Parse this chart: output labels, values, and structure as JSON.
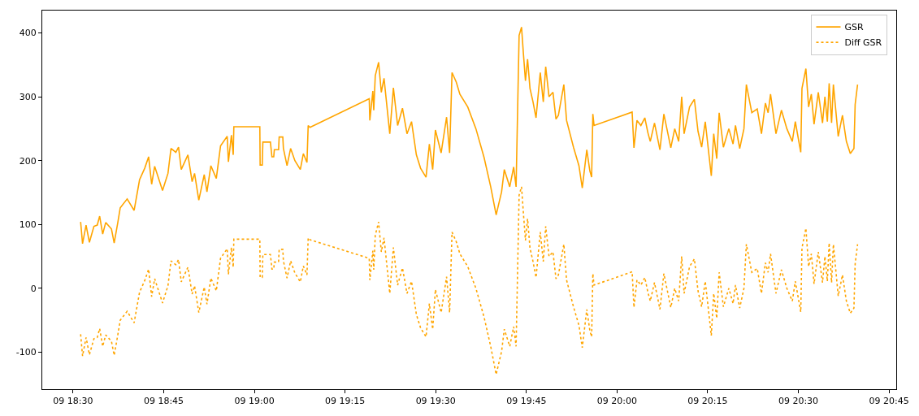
{
  "chart_data": {
    "type": "line",
    "x": [
      "2000-01-09T18:31:15",
      "2000-01-09T18:31:34",
      "2000-01-09T18:32:09",
      "2000-01-09T18:32:42",
      "2000-01-09T18:33:27",
      "2000-01-09T18:34:00",
      "2000-01-09T18:34:24",
      "2000-01-09T18:34:54",
      "2000-01-09T18:35:24",
      "2000-01-09T18:36:21",
      "2000-01-09T18:36:48",
      "2000-01-09T18:37:24",
      "2000-01-09T18:37:48",
      "2000-01-09T18:38:57",
      "2000-01-09T18:40:06",
      "2000-01-09T18:41:00",
      "2000-01-09T18:41:51",
      "2000-01-09T18:42:30",
      "2000-01-09T18:43:00",
      "2000-01-09T18:43:30",
      "2000-01-09T18:44:48",
      "2000-01-09T18:45:42",
      "2000-01-09T18:46:12",
      "2000-01-09T18:47:00",
      "2000-01-09T18:47:27",
      "2000-01-09T18:47:54",
      "2000-01-09T18:49:00",
      "2000-01-09T18:49:42",
      "2000-01-09T18:50:06",
      "2000-01-09T18:50:48",
      "2000-01-09T18:51:42",
      "2000-01-09T18:52:09",
      "2000-01-09T18:52:48",
      "2000-01-09T18:53:42",
      "2000-01-09T18:54:24",
      "2000-01-09T18:55:30",
      "2000-01-09T18:55:42",
      "2000-01-09T18:56:12",
      "2000-01-09T18:56:30",
      "2000-01-09T18:56:36",
      "2000-01-09T19:00:54",
      "2000-01-09T19:00:57",
      "2000-01-09T19:01:18",
      "2000-01-09T19:01:24",
      "2000-01-09T19:02:39",
      "2000-01-09T19:02:54",
      "2000-01-09T19:03:12",
      "2000-01-09T19:03:18",
      "2000-01-09T19:04:00",
      "2000-01-09T19:04:06",
      "2000-01-09T19:04:42",
      "2000-01-09T19:04:48",
      "2000-01-09T19:05:24",
      "2000-01-09T19:06:00",
      "2000-01-09T19:06:42",
      "2000-01-09T19:07:36",
      "2000-01-09T19:08:06",
      "2000-01-09T19:08:42",
      "2000-01-09T19:08:54",
      "2000-01-09T19:09:12",
      "2000-01-09T19:19:00",
      "2000-01-09T19:19:06",
      "2000-01-09T19:19:36",
      "2000-01-09T19:19:45",
      "2000-01-09T19:20:00",
      "2000-01-09T19:20:33",
      "2000-01-09T19:21:00",
      "2000-01-09T19:21:27",
      "2000-01-09T19:22:24",
      "2000-01-09T19:23:00",
      "2000-01-09T19:23:42",
      "2000-01-09T19:24:30",
      "2000-01-09T19:25:15",
      "2000-01-09T19:26:00",
      "2000-01-09T19:26:48",
      "2000-01-09T19:27:30",
      "2000-01-09T19:28:24",
      "2000-01-09T19:28:57",
      "2000-01-09T19:29:30",
      "2000-01-09T19:29:57",
      "2000-01-09T19:30:54",
      "2000-01-09T19:31:48",
      "2000-01-09T19:32:18",
      "2000-01-09T19:32:42",
      "2000-01-09T19:33:24",
      "2000-01-09T19:34:00",
      "2000-01-09T19:35:18",
      "2000-01-09T19:36:39",
      "2000-01-09T19:38:00",
      "2000-01-09T19:39:06",
      "2000-01-09T19:40:00",
      "2000-01-09T19:40:54",
      "2000-01-09T19:41:21",
      "2000-01-09T19:42:15",
      "2000-01-09T19:42:54",
      "2000-01-09T19:43:18",
      "2000-01-09T19:43:36",
      "2000-01-09T19:43:48",
      "2000-01-09T19:44:12",
      "2000-01-09T19:44:30",
      "2000-01-09T19:44:51",
      "2000-01-09T19:45:12",
      "2000-01-09T19:45:36",
      "2000-01-09T19:46:06",
      "2000-01-09T19:46:36",
      "2000-01-09T19:47:18",
      "2000-01-09T19:47:48",
      "2000-01-09T19:48:12",
      "2000-01-09T19:48:45",
      "2000-01-09T19:49:24",
      "2000-01-09T19:49:54",
      "2000-01-09T19:50:18",
      "2000-01-09T19:51:12",
      "2000-01-09T19:51:39",
      "2000-01-09T19:52:48",
      "2000-01-09T19:53:42",
      "2000-01-09T19:54:15",
      "2000-01-09T19:55:00",
      "2000-01-09T19:55:30",
      "2000-01-09T19:55:48",
      "2000-01-09T19:56:00",
      "2000-01-09T19:56:12",
      "2000-01-09T20:02:30",
      "2000-01-09T20:02:48",
      "2000-01-09T20:03:18",
      "2000-01-09T20:03:57",
      "2000-01-09T20:04:36",
      "2000-01-09T20:05:06",
      "2000-01-09T20:05:30",
      "2000-01-09T20:06:12",
      "2000-01-09T20:07:06",
      "2000-01-09T20:07:45",
      "2000-01-09T20:08:54",
      "2000-01-09T20:09:33",
      "2000-01-09T20:10:12",
      "2000-01-09T20:10:42",
      "2000-01-09T20:11:06",
      "2000-01-09T20:12:00",
      "2000-01-09T20:12:48",
      "2000-01-09T20:13:24",
      "2000-01-09T20:14:00",
      "2000-01-09T20:14:36",
      "2000-01-09T20:15:36",
      "2000-01-09T20:16:00",
      "2000-01-09T20:16:30",
      "2000-01-09T20:16:54",
      "2000-01-09T20:17:36",
      "2000-01-09T20:18:30",
      "2000-01-09T20:19:12",
      "2000-01-09T20:19:36",
      "2000-01-09T20:20:18",
      "2000-01-09T20:21:00",
      "2000-01-09T20:21:24",
      "2000-01-09T20:22:18",
      "2000-01-09T20:23:12",
      "2000-01-09T20:23:54",
      "2000-01-09T20:24:33",
      "2000-01-09T20:25:00",
      "2000-01-09T20:25:24",
      "2000-01-09T20:26:18",
      "2000-01-09T20:27:12",
      "2000-01-09T20:28:06",
      "2000-01-09T20:29:00",
      "2000-01-09T20:29:30",
      "2000-01-09T20:30:24",
      "2000-01-09T20:30:36",
      "2000-01-09T20:31:15",
      "2000-01-09T20:31:42",
      "2000-01-09T20:32:09",
      "2000-01-09T20:32:36",
      "2000-01-09T20:33:18",
      "2000-01-09T20:34:00",
      "2000-01-09T20:34:24",
      "2000-01-09T20:34:48",
      "2000-01-09T20:35:06",
      "2000-01-09T20:35:30",
      "2000-01-09T20:35:48",
      "2000-01-09T20:36:36",
      "2000-01-09T20:37:18",
      "2000-01-09T20:37:57",
      "2000-01-09T20:38:36",
      "2000-01-09T20:39:12",
      "2000-01-09T20:39:24",
      "2000-01-09T20:39:48"
    ],
    "series": [
      {
        "name": "GSR",
        "color": "#ffa500",
        "line_style": "solid",
        "values": [
          104,
          70,
          99,
          72,
          97,
          99,
          113,
          85,
          103,
          93,
          71,
          103,
          126,
          140,
          122,
          170,
          188,
          206,
          163,
          191,
          153,
          180,
          219,
          213,
          221,
          186,
          209,
          167,
          180,
          138,
          178,
          151,
          192,
          172,
          223,
          238,
          198,
          240,
          209,
          253,
          253,
          193,
          193,
          229,
          229,
          206,
          206,
          217,
          217,
          237,
          237,
          219,
          192,
          219,
          200,
          186,
          211,
          197,
          255,
          252,
          297,
          263,
          309,
          279,
          333,
          354,
          307,
          329,
          242,
          314,
          255,
          282,
          242,
          261,
          209,
          188,
          174,
          226,
          186,
          248,
          212,
          268,
          212,
          338,
          323,
          304,
          284,
          250,
          205,
          159,
          115,
          151,
          186,
          159,
          190,
          159,
          302,
          396,
          409,
          369,
          325,
          359,
          313,
          292,
          267,
          338,
          292,
          347,
          300,
          307,
          265,
          271,
          319,
          263,
          221,
          192,
          157,
          217,
          184,
          174,
          273,
          255,
          276,
          220,
          263,
          255,
          267,
          244,
          230,
          259,
          217,
          273,
          220,
          250,
          230,
          300,
          242,
          284,
          296,
          246,
          221,
          261,
          176,
          242,
          203,
          275,
          221,
          250,
          226,
          255,
          219,
          250,
          319,
          275,
          281,
          242,
          290,
          275,
          304,
          242,
          279,
          250,
          230,
          261,
          213,
          313,
          344,
          284,
          304,
          257,
          307,
          259,
          300,
          261,
          321,
          259,
          319,
          238,
          271,
          230,
          211,
          219,
          288,
          319
        ]
      },
      {
        "name": "Diff GSR",
        "color": "#ffa500",
        "line_style": "dotted",
        "values": [
          -72,
          -106,
          -77,
          -104,
          -79,
          -77,
          -63,
          -91,
          -73,
          -83,
          -105,
          -73,
          -50,
          -36,
          -54,
          -6,
          12,
          30,
          -13,
          15,
          -23,
          4,
          43,
          37,
          45,
          10,
          33,
          -9,
          4,
          -38,
          2,
          -25,
          16,
          -4,
          47,
          62,
          22,
          64,
          33,
          77,
          77,
          17,
          17,
          53,
          53,
          30,
          30,
          41,
          41,
          61,
          61,
          43,
          16,
          43,
          24,
          10,
          35,
          21,
          79,
          76,
          47,
          13,
          59,
          29,
          83,
          104,
          57,
          79,
          -8,
          64,
          5,
          32,
          -8,
          11,
          -41,
          -62,
          -76,
          -24,
          -64,
          -2,
          -38,
          18,
          -38,
          88,
          73,
          54,
          34,
          0,
          -45,
          -91,
          -135,
          -99,
          -64,
          -91,
          -60,
          -91,
          52,
          146,
          159,
          119,
          75,
          109,
          63,
          42,
          17,
          88,
          42,
          97,
          50,
          57,
          15,
          21,
          69,
          13,
          -29,
          -58,
          -93,
          -33,
          -66,
          -76,
          23,
          5,
          26,
          -30,
          13,
          5,
          17,
          -6,
          -20,
          9,
          -33,
          23,
          -30,
          0,
          -20,
          50,
          -8,
          34,
          46,
          -4,
          -29,
          11,
          -74,
          -8,
          -47,
          25,
          -29,
          0,
          -24,
          5,
          -31,
          0,
          69,
          25,
          31,
          -8,
          40,
          25,
          54,
          -8,
          29,
          0,
          -20,
          11,
          -37,
          63,
          94,
          34,
          54,
          7,
          57,
          9,
          50,
          11,
          71,
          9,
          69,
          -12,
          21,
          -20,
          -39,
          -31,
          38,
          69
        ]
      }
    ],
    "xlim": [
      "2000-01-09T18:24:54",
      "2000-01-09T20:46:12"
    ],
    "xticks": [
      {
        "value": "2000-01-09T18:30",
        "label": "09 18:30"
      },
      {
        "value": "2000-01-09T18:45",
        "label": "09 18:45"
      },
      {
        "value": "2000-01-09T19:00",
        "label": "09 19:00"
      },
      {
        "value": "2000-01-09T19:15",
        "label": "09 19:15"
      },
      {
        "value": "2000-01-09T19:30",
        "label": "09 19:30"
      },
      {
        "value": "2000-01-09T19:45",
        "label": "09 19:45"
      },
      {
        "value": "2000-01-09T20:00",
        "label": "09 20:00"
      },
      {
        "value": "2000-01-09T20:15",
        "label": "09 20:15"
      },
      {
        "value": "2000-01-09T20:30",
        "label": "09 20:30"
      },
      {
        "value": "2000-01-09T20:45",
        "label": "09 20:45"
      }
    ],
    "ylim": [
      -158,
      435
    ],
    "yticks": [
      -100,
      0,
      100,
      200,
      300,
      400
    ],
    "legend": "top right"
  }
}
